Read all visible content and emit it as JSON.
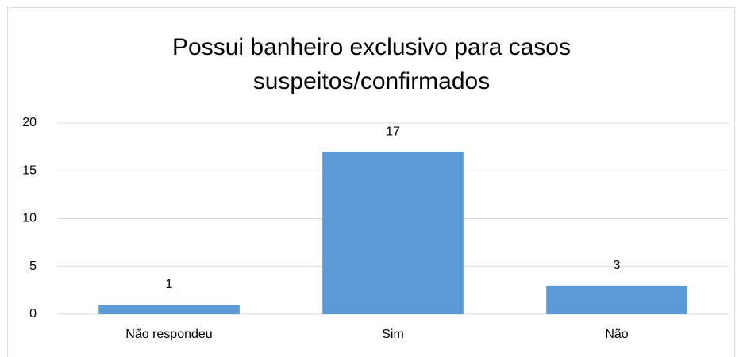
{
  "chart_data": {
    "type": "bar",
    "title": "Possui banheiro exclusivo para casos suspeitos/confirmados",
    "categories": [
      "Não respondeu",
      "Sim",
      "Não"
    ],
    "values": [
      1,
      17,
      3
    ],
    "color": "#5b9bd5",
    "ylim": [
      0,
      20
    ],
    "yticks": [
      0,
      5,
      10,
      15,
      20
    ],
    "grid": true
  }
}
